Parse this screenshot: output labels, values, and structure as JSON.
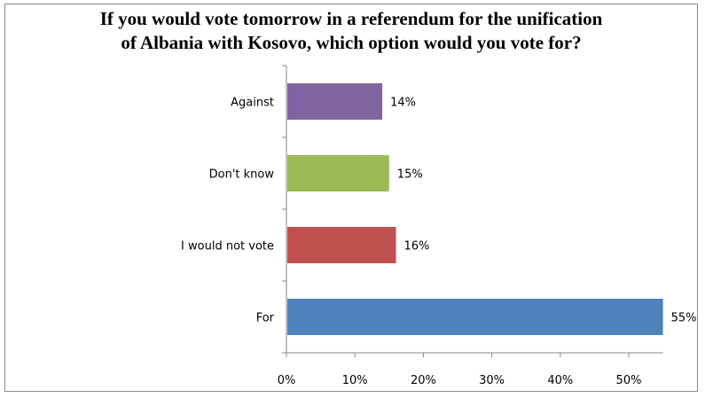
{
  "chart_data": {
    "type": "bar",
    "orientation": "horizontal",
    "title_lines": [
      "If you would vote tomorrow in a referendum for the unification",
      "of Albania with Kosovo, which option would you vote for?"
    ],
    "categories": [
      "Against",
      "Don't know",
      "I would not vote",
      "For"
    ],
    "values": [
      14,
      15,
      16,
      55
    ],
    "value_labels": [
      "14%",
      "15%",
      "16%",
      "55%"
    ],
    "colors": [
      "#8064a2",
      "#9bbb59",
      "#c0504d",
      "#4f81bd"
    ],
    "x_ticks": [
      "0%",
      "10%",
      "20%",
      "30%",
      "40%",
      "50%"
    ],
    "xlim": [
      0,
      55
    ],
    "xlabel": "",
    "ylabel": "",
    "grid": false,
    "legend": "none"
  }
}
